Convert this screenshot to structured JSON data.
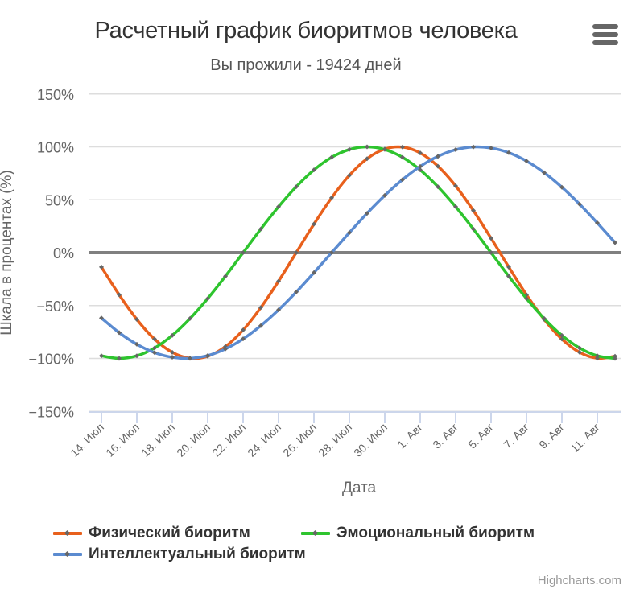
{
  "header": {
    "title": "Расчетный график биоритмов человека",
    "subtitle": "Вы прожили - 19424 дней",
    "menu_icon": "hamburger-menu-icon"
  },
  "axes": {
    "y_title": "Шкала в процентах (%)",
    "x_title": "Дата",
    "y_ticks": [
      "150%",
      "100%",
      "50%",
      "0%",
      "−50%",
      "−100%",
      "−150%"
    ],
    "x_ticks": [
      "14. Июл",
      "16. Июл",
      "18. Июл",
      "20. Июл",
      "22. Июл",
      "24. Июл",
      "26. Июл",
      "28. Июл",
      "30. Июл",
      "1. Авг",
      "3. Авг",
      "5. Авг",
      "7. Авг",
      "9. Авг",
      "11. Авг"
    ]
  },
  "legend": {
    "items": [
      {
        "label": "Физический биоритм",
        "color": "#e8601c"
      },
      {
        "label": "Эмоциональный биоритм",
        "color": "#2ec42e"
      },
      {
        "label": "Интеллектуальный биоритм",
        "color": "#5b8bd0"
      }
    ]
  },
  "credits": "Highcharts.com",
  "chart_data": {
    "type": "line",
    "title": "Расчетный график биоритмов человека",
    "subtitle": "Вы прожили - 19424 дней",
    "xlabel": "Дата",
    "ylabel": "Шкала в процентах (%)",
    "ylim": [
      -150,
      150
    ],
    "y_tick_values": [
      -150,
      -100,
      -50,
      0,
      50,
      100,
      150
    ],
    "grid": true,
    "legend_position": "bottom-left",
    "x": [
      "14. Июл",
      "15. Июл",
      "16. Июл",
      "17. Июл",
      "18. Июл",
      "19. Июл",
      "20. Июл",
      "21. Июл",
      "22. Июл",
      "23. Июл",
      "24. Июл",
      "25. Июл",
      "26. Июл",
      "27. Июл",
      "28. Июл",
      "29. Июл",
      "30. Июл",
      "31. Июл",
      "1. Авг",
      "2. Авг",
      "3. Авг",
      "4. Авг",
      "5. Авг",
      "6. Авг",
      "7. Авг",
      "8. Авг",
      "9. Авг",
      "10. Авг",
      "11. Авг",
      "12. Авг"
    ],
    "series": [
      {
        "name": "Физический биоритм",
        "color": "#e8601c",
        "values": [
          -13.6,
          -39.8,
          -63.1,
          -81.7,
          -94.2,
          -99.8,
          -97.9,
          -88.8,
          -73.1,
          -51.9,
          -27.0,
          0,
          27.0,
          51.9,
          73.1,
          88.8,
          97.9,
          99.8,
          94.2,
          81.7,
          63.1,
          39.8,
          13.6,
          -13.6,
          -39.8,
          -63.1,
          -81.7,
          -94.2,
          -99.8,
          -97.9
        ]
      },
      {
        "name": "Эмоциональный биоритм",
        "color": "#2ec42e",
        "values": [
          -97.5,
          -100,
          -97.5,
          -90.1,
          -78.2,
          -62.3,
          -43.4,
          -22.3,
          0,
          22.3,
          43.4,
          62.3,
          78.2,
          90.1,
          97.5,
          100,
          97.5,
          90.1,
          78.2,
          62.3,
          43.4,
          22.3,
          0,
          -22.3,
          -43.4,
          -62.3,
          -78.2,
          -90.1,
          -97.5,
          -100
        ]
      },
      {
        "name": "Интеллектуальный биоритм",
        "color": "#5b8bd0",
        "values": [
          -61.8,
          -75.6,
          -86.6,
          -94.5,
          -98.9,
          -99.9,
          -97.3,
          -91.0,
          -81.5,
          -69.0,
          -54.1,
          -37.2,
          -18.9,
          0,
          18.9,
          37.2,
          54.1,
          69.0,
          81.5,
          91.0,
          97.3,
          99.9,
          98.9,
          94.5,
          86.6,
          75.6,
          61.8,
          45.8,
          28.1,
          9.5
        ]
      }
    ]
  }
}
